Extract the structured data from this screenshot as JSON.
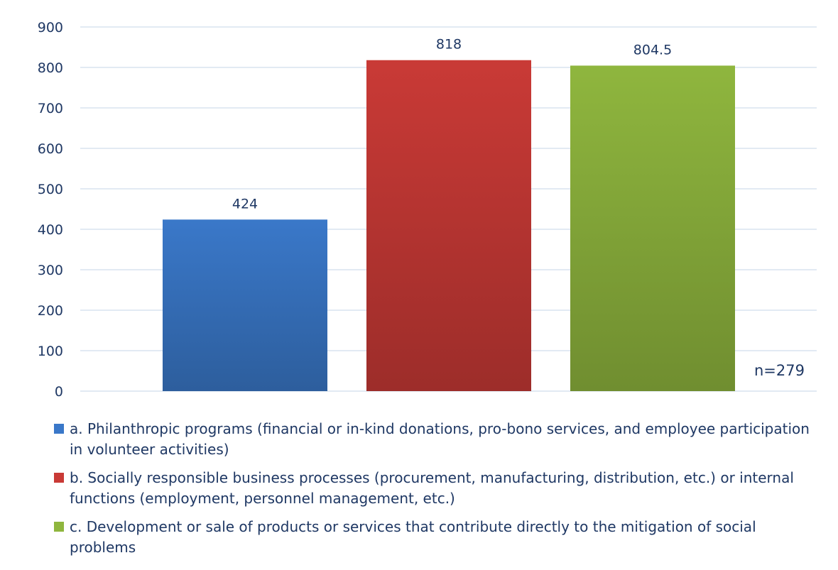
{
  "chart_data": {
    "type": "bar",
    "categories": [
      "a. Philanthropic programs (financial or in-kind donations, pro-bono services, and employee participation in volunteer activities)",
      "b. Socially responsible business processes (procurement, manufacturing, distribution, etc.) or internal functions (employment, personnel management, etc.)",
      "c. Development or sale of products or services that contribute directly to the mitigation of social problems"
    ],
    "values": [
      424,
      818,
      804.5
    ],
    "value_labels": [
      "424",
      "818",
      "804.5"
    ],
    "colors": [
      "#3a78c9",
      "#c93a36",
      "#8fb63e"
    ],
    "ylim": [
      0,
      900
    ],
    "yticks": [
      "0",
      "100",
      "200",
      "300",
      "400",
      "500",
      "600",
      "700",
      "800",
      "900"
    ],
    "grid": true,
    "legend_position": "bottom",
    "annotation": "n=279"
  }
}
